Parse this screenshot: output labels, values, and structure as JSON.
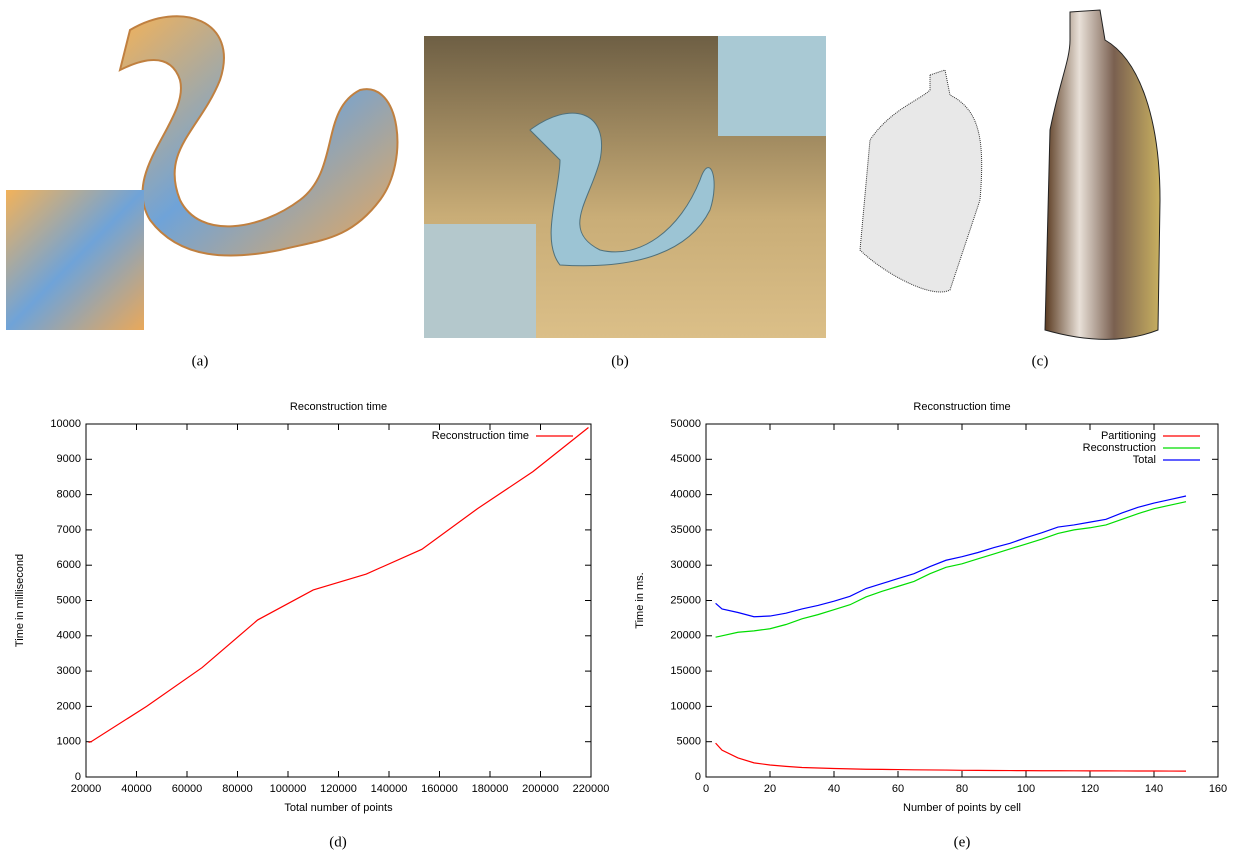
{
  "captions": [
    "(a)",
    "(b)",
    "(c)",
    "(d)",
    "(e)"
  ],
  "chart_data": [
    {
      "type": "line",
      "title": "Reconstruction time",
      "x_label": "Total number of points",
      "y_label": "Time in millisecond",
      "x": [
        21000,
        22000,
        44000,
        66000,
        88000,
        110000,
        131000,
        153000,
        175000,
        197000,
        219000
      ],
      "series": [
        {
          "name": "Reconstruction time",
          "color": "#ff0000",
          "values": [
            980,
            1000,
            2000,
            3100,
            4450,
            5300,
            5750,
            6450,
            7600,
            8650,
            9900
          ]
        }
      ],
      "xlim": [
        20000,
        220000
      ],
      "xticks": [
        20000,
        40000,
        60000,
        80000,
        100000,
        120000,
        140000,
        160000,
        180000,
        200000,
        220000
      ],
      "ylim": [
        0,
        10000
      ],
      "yticks": [
        0,
        1000,
        2000,
        3000,
        4000,
        5000,
        6000,
        7000,
        8000,
        9000,
        10000
      ],
      "legend": "top right",
      "grid": false
    },
    {
      "type": "line",
      "title": "Reconstruction time",
      "x_label": "Number of points by cell",
      "y_label": "Time in ms.",
      "x": [
        3,
        5,
        10,
        15,
        20,
        25,
        30,
        35,
        40,
        45,
        50,
        55,
        60,
        65,
        70,
        75,
        80,
        85,
        90,
        95,
        100,
        105,
        110,
        115,
        120,
        125,
        130,
        135,
        140,
        145,
        150
      ],
      "series": [
        {
          "name": "Partitioning",
          "color": "#ff0000",
          "values": [
            4800,
            3800,
            2700,
            2000,
            1700,
            1500,
            1350,
            1270,
            1200,
            1150,
            1100,
            1080,
            1050,
            1020,
            1000,
            980,
            950,
            940,
            920,
            910,
            900,
            890,
            880,
            875,
            870,
            865,
            860,
            855,
            850,
            840,
            830
          ]
        },
        {
          "name": "Reconstruction",
          "color": "#00dd00",
          "values": [
            19800,
            20000,
            20500,
            20700,
            21000,
            21600,
            22400,
            23000,
            23700,
            24400,
            25500,
            26300,
            27000,
            27700,
            28800,
            29700,
            30200,
            30900,
            31600,
            32300,
            33000,
            33700,
            34500,
            35000,
            35300,
            35700,
            36500,
            37300,
            38000,
            38500,
            39000
          ]
        },
        {
          "name": "Total",
          "color": "#0000ff",
          "values": [
            24600,
            23800,
            23300,
            22700,
            22800,
            23200,
            23800,
            24300,
            24900,
            25600,
            26700,
            27400,
            28100,
            28800,
            29800,
            30700,
            31200,
            31800,
            32500,
            33100,
            33900,
            34600,
            35400,
            35700,
            36100,
            36500,
            37400,
            38200,
            38800,
            39300,
            39800
          ]
        }
      ],
      "xlim": [
        0,
        160
      ],
      "xticks": [
        0,
        20,
        40,
        60,
        80,
        100,
        120,
        140,
        160
      ],
      "ylim": [
        0,
        50000
      ],
      "yticks": [
        0,
        5000,
        10000,
        15000,
        20000,
        25000,
        30000,
        35000,
        40000,
        45000,
        50000
      ],
      "legend": "top right",
      "grid": false
    }
  ]
}
